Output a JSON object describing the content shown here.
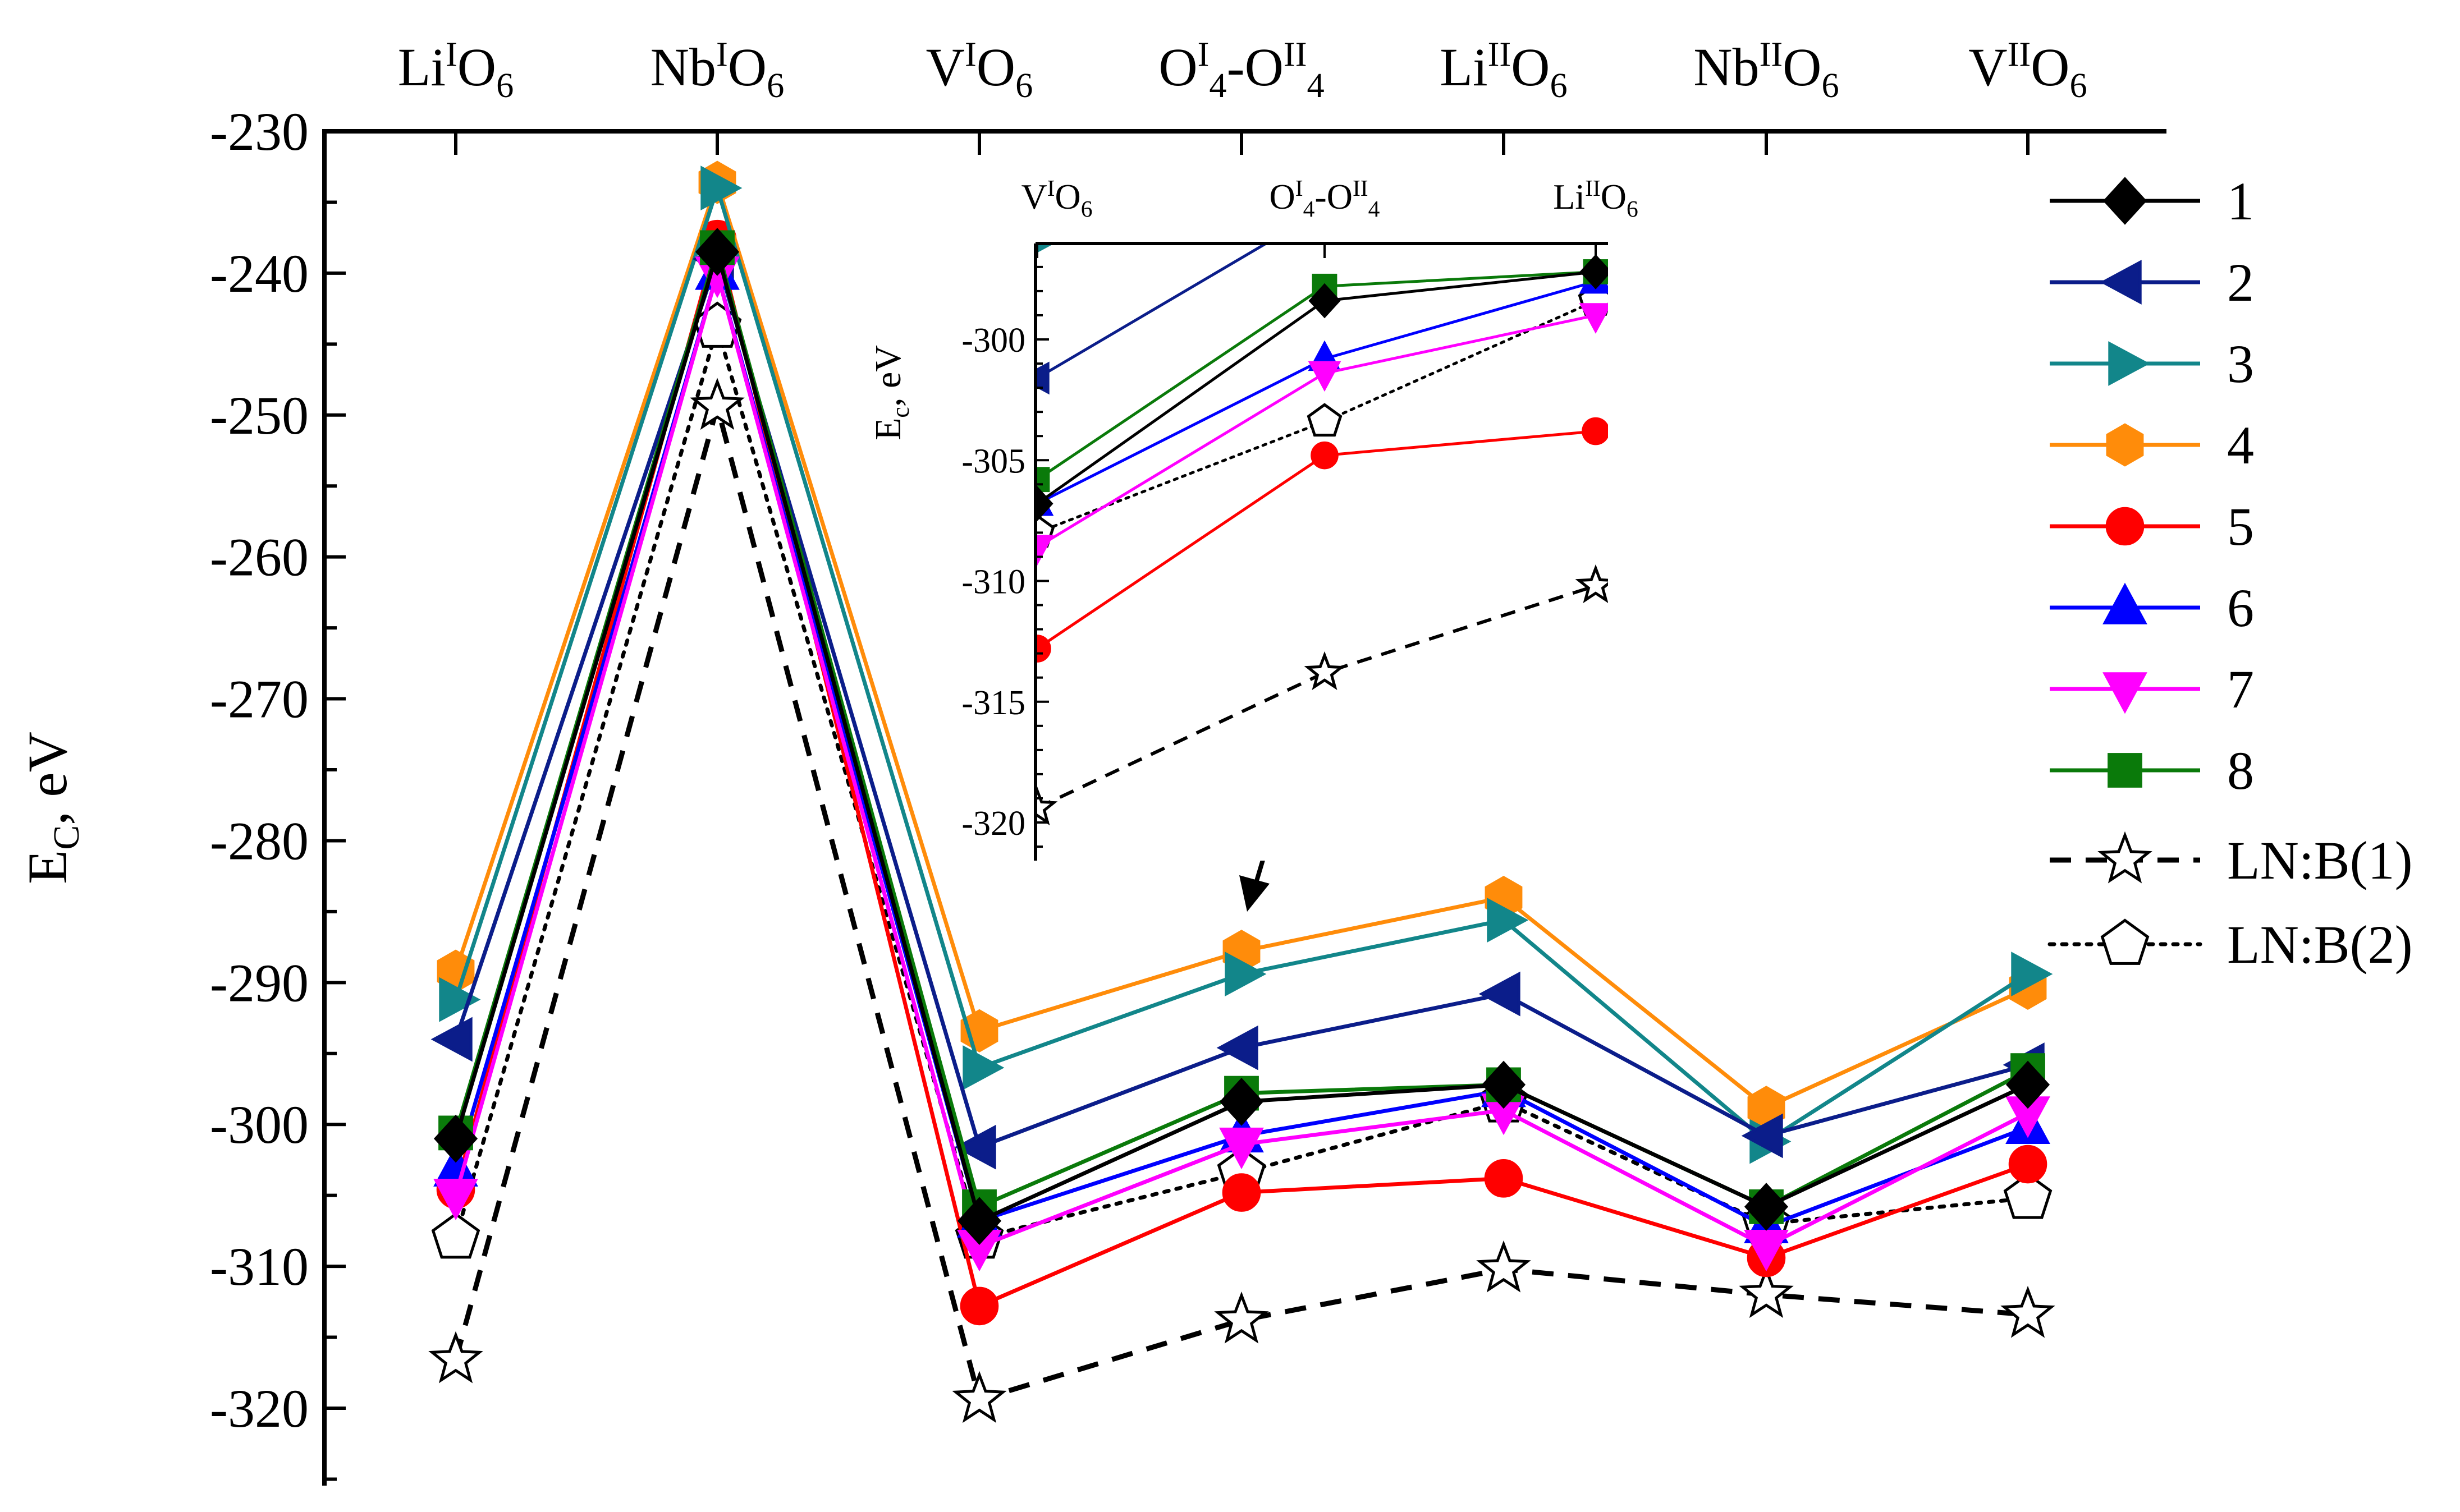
{
  "chart_data": {
    "type": "line",
    "ylabel": {
      "main": "E",
      "sub": "C",
      "rest": ", eV"
    },
    "ylim": [
      -325,
      -230
    ],
    "yticks": [
      -230,
      -240,
      -250,
      -260,
      -270,
      -280,
      -290,
      -300,
      -310,
      -320
    ],
    "categories": [
      {
        "base": "Li",
        "sup": "I",
        "tail": "O",
        "sub": "6"
      },
      {
        "base": "Nb",
        "sup": "I",
        "tail": "O",
        "sub": "6"
      },
      {
        "base": "V",
        "sup": "I",
        "tail": "O",
        "sub": "6"
      },
      {
        "base": "O",
        "sup": "I",
        "sub": "4",
        "mid": "-O",
        "sup2": "II",
        "sub2": "4"
      },
      {
        "base": "Li",
        "sup": "II",
        "tail": "O",
        "sub": "6"
      },
      {
        "base": "Nb",
        "sup": "II",
        "tail": "O",
        "sub": "6"
      },
      {
        "base": "V",
        "sup": "II",
        "tail": "O",
        "sub": "6"
      }
    ],
    "series": [
      {
        "name": "1",
        "color": "#000000",
        "marker": "diamond",
        "dash": "solid",
        "values": [
          -301.0,
          -238.5,
          -306.8,
          -298.4,
          -297.2,
          -305.8,
          -297.2
        ]
      },
      {
        "name": "2",
        "color": "#0b1d8a",
        "marker": "triangle-left",
        "dash": "solid",
        "values": [
          -294.0,
          -239.0,
          -301.6,
          -294.6,
          -290.8,
          -300.8,
          -295.8
        ]
      },
      {
        "name": "3",
        "color": "#12868a",
        "marker": "triangle-right",
        "dash": "solid",
        "values": [
          -291.2,
          -234.0,
          -296.0,
          -289.4,
          -285.6,
          -301.2,
          -289.4
        ]
      },
      {
        "name": "4",
        "color": "#ff8c0a",
        "marker": "hexagon",
        "dash": "solid",
        "values": [
          -289.2,
          -233.6,
          -293.4,
          -287.8,
          -284.0,
          -298.8,
          -290.4
        ]
      },
      {
        "name": "5",
        "color": "#ff0000",
        "marker": "circle",
        "dash": "solid",
        "values": [
          -304.6,
          -237.6,
          -312.8,
          -304.8,
          -303.8,
          -309.4,
          -302.8
        ]
      },
      {
        "name": "6",
        "color": "#0000ff",
        "marker": "triangle-up",
        "dash": "solid",
        "values": [
          -303.2,
          -240.0,
          -306.8,
          -300.8,
          -297.6,
          -307.2,
          -300.2
        ]
      },
      {
        "name": "7",
        "color": "#ff00ff",
        "marker": "triangle-down",
        "dash": "solid",
        "values": [
          -305.0,
          -240.0,
          -308.6,
          -301.4,
          -299.0,
          -308.6,
          -299.2
        ]
      },
      {
        "name": "8",
        "color": "#0a7a0a",
        "marker": "square",
        "dash": "solid",
        "values": [
          -300.6,
          -238.2,
          -305.8,
          -297.8,
          -297.2,
          -305.8,
          -296.2
        ]
      },
      {
        "name": "LN:B(1)",
        "color": "#000000",
        "marker": "star",
        "dash": "long",
        "values": [
          -316.6,
          -249.4,
          -319.4,
          -313.8,
          -310.2,
          -312.0,
          -313.4
        ]
      },
      {
        "name": "LN:B(2)",
        "color": "#000000",
        "marker": "pentagon",
        "dash": "dot",
        "values": [
          -308.0,
          -243.8,
          -308.0,
          -303.4,
          -298.4,
          -307.0,
          -305.2
        ]
      }
    ],
    "inset": {
      "ylim": [
        -321,
        -296
      ],
      "yticks": [
        -300,
        -305,
        -310,
        -315,
        -320
      ],
      "ylabel": {
        "main": "E",
        "sub": "c",
        "rest": ", eV"
      },
      "categories": [
        {
          "base": "V",
          "sup": "I",
          "tail": "O",
          "sub": "6"
        },
        {
          "base": "O",
          "sup": "I",
          "sub": "4",
          "mid": "-O",
          "sup2": "II",
          "sub2": "4"
        },
        {
          "base": "Li",
          "sup": "II",
          "tail": "O",
          "sub": "6"
        }
      ]
    }
  }
}
